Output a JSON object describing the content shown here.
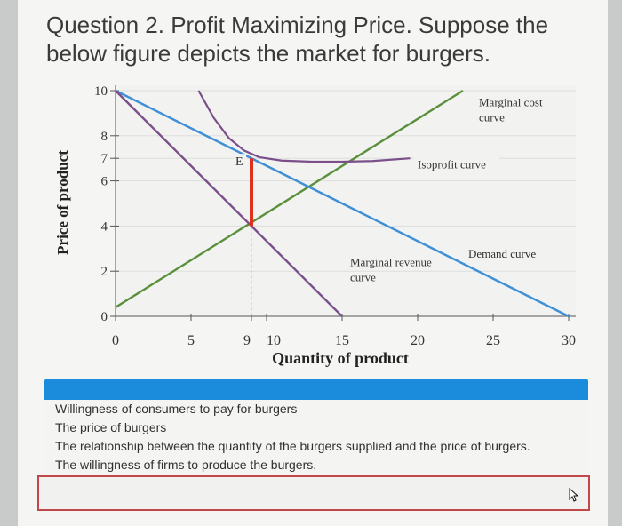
{
  "question": "Question 2. Profit Maximizing Price. Suppose the below figure depicts the market for burgers.",
  "chart_data": {
    "type": "line",
    "xlabel": "Quantity of product",
    "ylabel": "Price of product",
    "xlim": [
      0,
      30
    ],
    "ylim": [
      0,
      10
    ],
    "x_ticks": [
      "0",
      "5",
      "9",
      "10",
      "15",
      "20",
      "25",
      "30"
    ],
    "y_ticks": [
      "0",
      "2",
      "4",
      "6",
      "7",
      "8",
      "10"
    ],
    "grid": true,
    "series": [
      {
        "name": "Marginal cost curve",
        "color": "#5a8f3c",
        "x": [
          0,
          23
        ],
        "y": [
          0.4,
          10
        ]
      },
      {
        "name": "Demand curve",
        "color": "#3d8fd8",
        "x": [
          0,
          30
        ],
        "y": [
          10,
          0
        ]
      },
      {
        "name": "Marginal revenue curve",
        "color": "#7a4f8a",
        "x": [
          0,
          15
        ],
        "y": [
          10,
          0
        ]
      },
      {
        "name": "Isoprofit curve",
        "color": "#7a4f8a",
        "x": [
          5.5,
          6.5,
          7.5,
          8.5,
          9.5,
          11,
          13,
          15,
          17,
          19.5
        ],
        "y": [
          10,
          8.8,
          7.9,
          7.35,
          7.05,
          6.9,
          6.85,
          6.85,
          6.88,
          7.0
        ]
      }
    ],
    "annotations": [
      {
        "text": "E",
        "x": 9,
        "y": 7
      },
      {
        "text": "Marginal cost curve",
        "x": 25,
        "y": 9
      },
      {
        "text": "Isoprofit curve",
        "x": 20,
        "y": 6.8
      },
      {
        "text": "Demand curve",
        "x": 25,
        "y": 2.6
      },
      {
        "text": "Marginal revenue curve",
        "x": 16,
        "y": 0.8
      }
    ],
    "highlight": {
      "color": "#e0301e",
      "x": 9,
      "y_from": 4,
      "y_to": 7
    },
    "guide": {
      "x": 9,
      "y_from": 4,
      "y_to": 7
    }
  },
  "options": [
    "Willingness of consumers to pay for burgers",
    "The price of burgers",
    "The relationship between the quantity of the burgers supplied and the price of burgers.",
    "The willingness of firms to produce the burgers."
  ]
}
